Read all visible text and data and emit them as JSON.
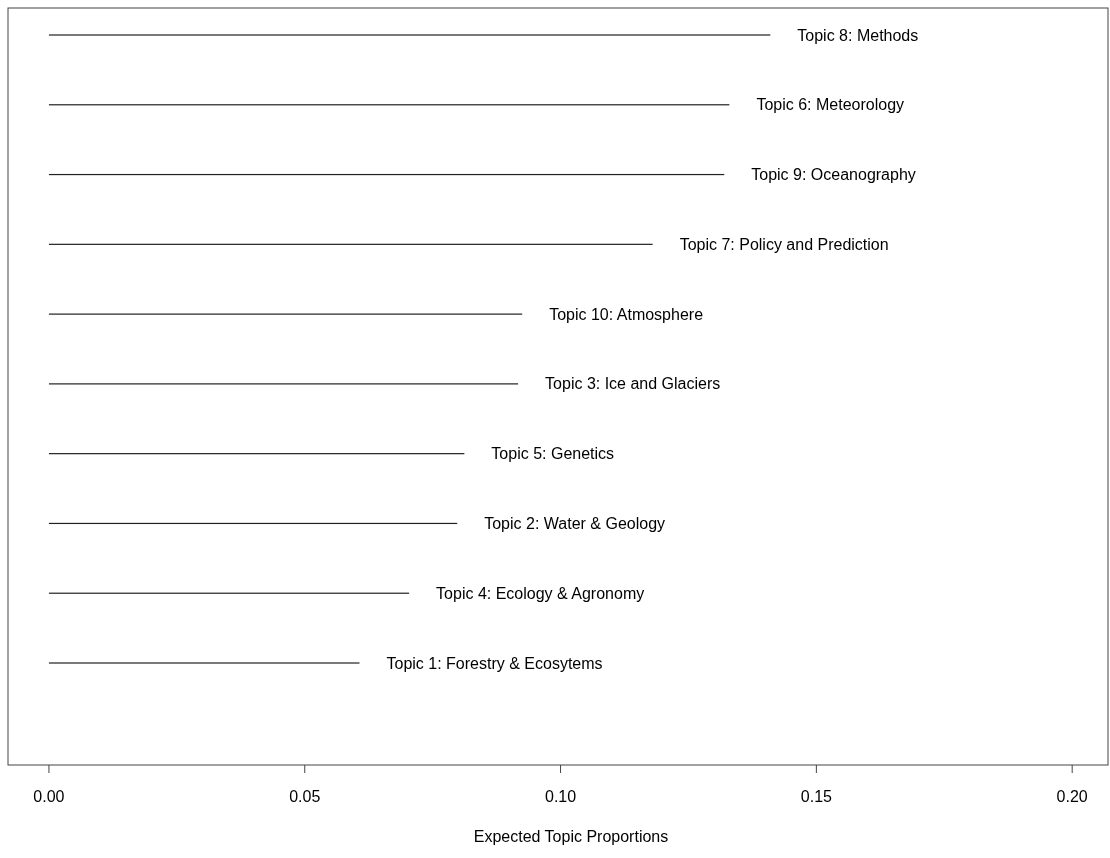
{
  "chart_data": {
    "type": "bar",
    "orientation": "horizontal",
    "xlabel": "Expected Topic Proportions",
    "categories": [
      "Topic 8: Methods",
      "Topic 6: Meteorology",
      "Topic 9: Oceanography",
      "Topic 7: Policy and Prediction",
      "Topic 10: Atmosphere",
      "Topic 3: Ice and Glaciers",
      "Topic 5: Genetics",
      "Topic 2: Water & Geology",
      "Topic 4: Ecology & Agronomy",
      "Topic 1: Forestry & Ecosytems"
    ],
    "values": [
      0.141,
      0.133,
      0.132,
      0.118,
      0.0925,
      0.0917,
      0.0812,
      0.0798,
      0.0704,
      0.0607
    ],
    "color": "#222222",
    "xlim": [
      -0.008,
      0.207
    ],
    "xticks": [
      {
        "value": 0,
        "label": "0.00"
      },
      {
        "value": 0.05,
        "label": "0.05"
      },
      {
        "value": 0.1,
        "label": "0.10"
      },
      {
        "value": 0.15,
        "label": "0.15"
      },
      {
        "value": 0.2,
        "label": "0.20"
      }
    ],
    "tick_labels": "x",
    "grid": false
  }
}
